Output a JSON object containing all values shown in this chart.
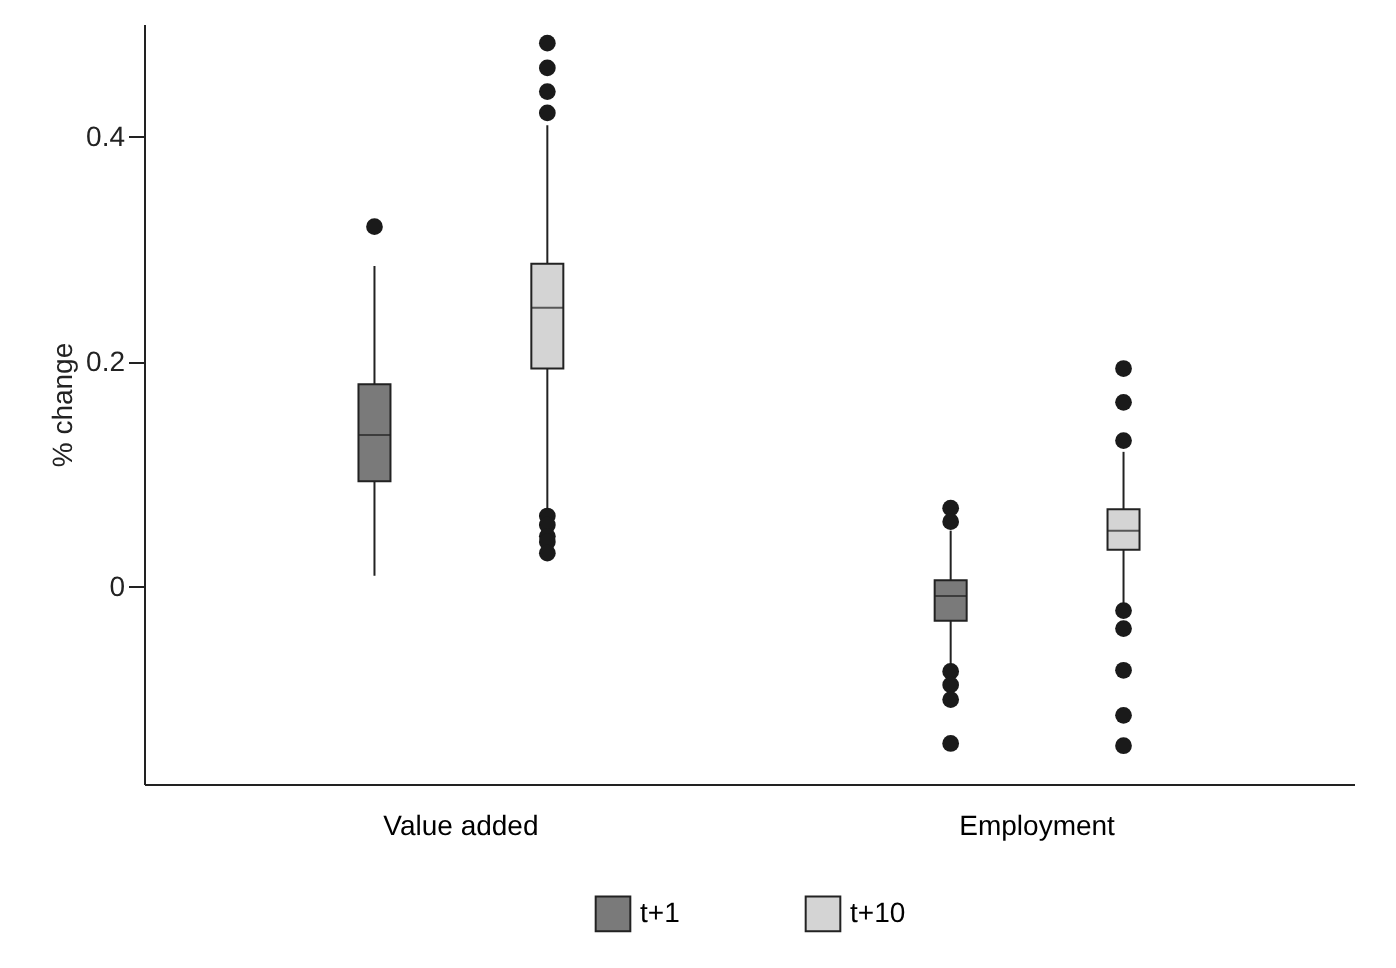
{
  "chart_data": {
    "type": "box",
    "ylabel": "% change",
    "categories": [
      "Value added",
      "Employment"
    ],
    "ylim": [
      -0.175,
      0.5
    ],
    "yticks": [
      0,
      0.2,
      0.4
    ],
    "grid": false,
    "legend": "bottom",
    "series": [
      {
        "name": "t+1",
        "color": "#7a7a7a",
        "boxes": [
          {
            "low": 0.01,
            "q1": 0.094,
            "median": 0.135,
            "q3": 0.18,
            "high": 0.285,
            "outliers": [
              0.32
            ]
          },
          {
            "low": -0.07,
            "q1": -0.03,
            "median": -0.008,
            "q3": 0.006,
            "high": 0.05,
            "outliers": [
              0.07,
              0.058,
              -0.075,
              -0.087,
              -0.1,
              -0.139
            ]
          }
        ]
      },
      {
        "name": "t+10",
        "color": "#d4d4d4",
        "boxes": [
          {
            "low": 0.07,
            "q1": 0.194,
            "median": 0.248,
            "q3": 0.287,
            "high": 0.41,
            "outliers": [
              0.483,
              0.461,
              0.44,
              0.421,
              0.063,
              0.055,
              0.045,
              0.04,
              0.03
            ]
          },
          {
            "low": -0.015,
            "q1": 0.033,
            "median": 0.05,
            "q3": 0.069,
            "high": 0.12,
            "outliers": [
              0.194,
              0.164,
              0.13,
              -0.021,
              -0.037,
              -0.074,
              -0.114,
              -0.141
            ]
          }
        ]
      }
    ]
  }
}
